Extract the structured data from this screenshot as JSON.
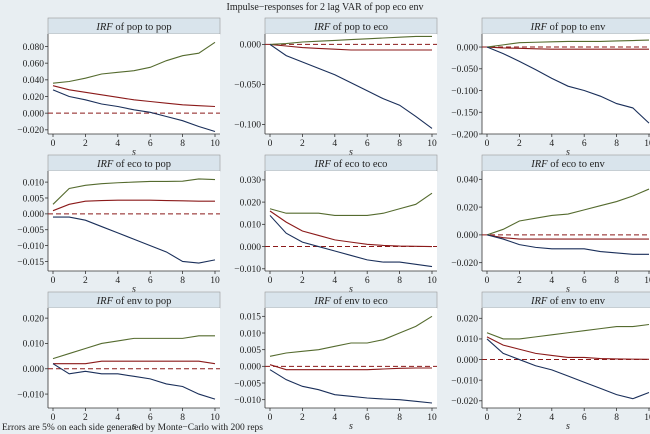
{
  "figure_title": "Impulse−responses for 2 lag VAR of pop eco env",
  "footnote": "Errors are 5% on each side generated by Monte−Carlo with 200 reps",
  "colors": {
    "background": "#e8eef2",
    "plot_background": "#ffffff",
    "header_background": "#d9e4ec",
    "irf": "#8b1a1a",
    "lower_band": "#1a2f5a",
    "upper_band": "#556b2f",
    "zero_line": "#8b1a1a"
  },
  "chart_data": [
    {
      "type": "line",
      "title_prefix": "IRF",
      "title_rest": " of pop to pop",
      "xlabel": "s",
      "x": [
        0,
        1,
        2,
        3,
        4,
        5,
        6,
        7,
        8,
        9,
        10
      ],
      "xticks": [
        0,
        2,
        4,
        6,
        8,
        10
      ],
      "xlim": [
        0,
        10
      ],
      "ylim": [
        -0.025,
        0.095
      ],
      "yticks": [
        -0.02,
        0,
        0.02,
        0.04,
        0.06,
        0.08
      ],
      "ytick_labels": [
        "−0.020",
        "0.000",
        "0.020",
        "0.040",
        "0.060",
        "0.080"
      ],
      "series": [
        {
          "role": "irf",
          "values": [
            0.033,
            0.028,
            0.025,
            0.022,
            0.019,
            0.016,
            0.014,
            0.012,
            0.01,
            0.009,
            0.008
          ]
        },
        {
          "role": "upper",
          "values": [
            0.036,
            0.038,
            0.042,
            0.047,
            0.049,
            0.051,
            0.055,
            0.063,
            0.069,
            0.072,
            0.085
          ]
        },
        {
          "role": "lower",
          "values": [
            0.028,
            0.02,
            0.016,
            0.011,
            0.008,
            0.004,
            0.001,
            -0.004,
            -0.009,
            -0.016,
            -0.022
          ]
        }
      ]
    },
    {
      "type": "line",
      "title_prefix": "IRF",
      "title_rest": " of pop to eco",
      "xlabel": "s",
      "x": [
        0,
        1,
        2,
        3,
        4,
        5,
        6,
        7,
        8,
        9,
        10
      ],
      "xticks": [
        0,
        2,
        4,
        6,
        8,
        10
      ],
      "xlim": [
        0,
        10
      ],
      "ylim": [
        -0.112,
        0.013
      ],
      "yticks": [
        -0.1,
        -0.05,
        0
      ],
      "ytick_labels": [
        "−0.100",
        "−0.050",
        "0.000"
      ],
      "series": [
        {
          "role": "irf",
          "values": [
            0,
            -0.002,
            -0.004,
            -0.005,
            -0.006,
            -0.007,
            -0.007,
            -0.007,
            -0.007,
            -0.007,
            -0.007
          ]
        },
        {
          "role": "upper",
          "values": [
            0,
            0.001,
            0.003,
            0.004,
            0.005,
            0.006,
            0.007,
            0.008,
            0.009,
            0.01,
            0.01
          ]
        },
        {
          "role": "lower",
          "values": [
            0,
            -0.014,
            -0.022,
            -0.03,
            -0.038,
            -0.048,
            -0.058,
            -0.068,
            -0.076,
            -0.09,
            -0.105
          ]
        }
      ]
    },
    {
      "type": "line",
      "title_prefix": "IRF",
      "title_rest": " of pop to env",
      "xlabel": "s",
      "x": [
        0,
        1,
        2,
        3,
        4,
        5,
        6,
        7,
        8,
        9,
        10
      ],
      "xticks": [
        0,
        2,
        4,
        6,
        8,
        10
      ],
      "xlim": [
        0,
        10
      ],
      "ylim": [
        -0.2,
        0.03
      ],
      "yticks": [
        -0.2,
        -0.15,
        -0.1,
        -0.05,
        0
      ],
      "ytick_labels": [
        "−0.200",
        "−0.150",
        "−0.100",
        "−0.050",
        "0.000"
      ],
      "series": [
        {
          "role": "irf",
          "values": [
            0,
            -0.002,
            -0.003,
            -0.004,
            -0.005,
            -0.005,
            -0.005,
            -0.005,
            -0.005,
            -0.005,
            -0.005
          ]
        },
        {
          "role": "upper",
          "values": [
            0,
            0.005,
            0.01,
            0.011,
            0.012,
            0.013,
            0.013,
            0.013,
            0.014,
            0.015,
            0.016
          ]
        },
        {
          "role": "lower",
          "values": [
            0,
            -0.015,
            -0.033,
            -0.052,
            -0.072,
            -0.09,
            -0.1,
            -0.113,
            -0.13,
            -0.14,
            -0.175
          ]
        }
      ]
    },
    {
      "type": "line",
      "title_prefix": "IRF",
      "title_rest": " of eco to pop",
      "xlabel": "s",
      "x": [
        0,
        1,
        2,
        3,
        4,
        5,
        6,
        7,
        8,
        9,
        10
      ],
      "xticks": [
        0,
        2,
        4,
        6,
        8,
        10
      ],
      "xlim": [
        0,
        10
      ],
      "ylim": [
        -0.018,
        0.0135
      ],
      "yticks": [
        -0.015,
        -0.01,
        -0.005,
        0,
        0.005,
        0.01
      ],
      "ytick_labels": [
        "−0.015",
        "−0.010",
        "−0.005",
        "0.000",
        "0.005",
        "0.010"
      ],
      "series": [
        {
          "role": "irf",
          "values": [
            0.001,
            0.003,
            0.004,
            0.0042,
            0.0043,
            0.0043,
            0.0043,
            0.0042,
            0.0041,
            0.004,
            0.004
          ]
        },
        {
          "role": "upper",
          "values": [
            0.003,
            0.008,
            0.009,
            0.0095,
            0.0098,
            0.01,
            0.0102,
            0.0102,
            0.0103,
            0.011,
            0.0108
          ]
        },
        {
          "role": "lower",
          "values": [
            -0.001,
            -0.001,
            -0.002,
            -0.004,
            -0.006,
            -0.008,
            -0.01,
            -0.012,
            -0.015,
            -0.0155,
            -0.0145
          ]
        }
      ]
    },
    {
      "type": "line",
      "title_prefix": "IRF",
      "title_rest": " of eco to eco",
      "xlabel": "s",
      "x": [
        0,
        1,
        2,
        3,
        4,
        5,
        6,
        7,
        8,
        9,
        10
      ],
      "xticks": [
        0,
        2,
        4,
        6,
        8,
        10
      ],
      "xlim": [
        0,
        10
      ],
      "ylim": [
        -0.011,
        0.034
      ],
      "yticks": [
        -0.01,
        0,
        0.01,
        0.02,
        0.03
      ],
      "ytick_labels": [
        "−0.010",
        "0.000",
        "0.010",
        "0.020",
        "0.030"
      ],
      "series": [
        {
          "role": "irf",
          "values": [
            0.016,
            0.011,
            0.007,
            0.005,
            0.003,
            0.002,
            0.001,
            0.0005,
            0.0002,
            0.0001,
            0.0
          ]
        },
        {
          "role": "upper",
          "values": [
            0.017,
            0.015,
            0.015,
            0.015,
            0.014,
            0.014,
            0.014,
            0.015,
            0.017,
            0.019,
            0.024
          ]
        },
        {
          "role": "lower",
          "values": [
            0.014,
            0.006,
            0.002,
            0.0,
            -0.002,
            -0.004,
            -0.006,
            -0.007,
            -0.007,
            -0.008,
            -0.009
          ]
        }
      ]
    },
    {
      "type": "line",
      "title_prefix": "IRF",
      "title_rest": " of eco to env",
      "xlabel": "s",
      "x": [
        0,
        1,
        2,
        3,
        4,
        5,
        6,
        7,
        8,
        9,
        10
      ],
      "xticks": [
        0,
        2,
        4,
        6,
        8,
        10
      ],
      "xlim": [
        0,
        10
      ],
      "ylim": [
        -0.026,
        0.046
      ],
      "yticks": [
        -0.02,
        0,
        0.02,
        0.04
      ],
      "ytick_labels": [
        "−0.020",
        "0.000",
        "0.020",
        "0.040"
      ],
      "series": [
        {
          "role": "irf",
          "values": [
            0,
            -0.002,
            -0.003,
            -0.003,
            -0.003,
            -0.003,
            -0.003,
            -0.003,
            -0.003,
            -0.003,
            -0.003
          ]
        },
        {
          "role": "upper",
          "values": [
            0,
            0.004,
            0.01,
            0.012,
            0.014,
            0.015,
            0.018,
            0.021,
            0.024,
            0.028,
            0.033
          ]
        },
        {
          "role": "lower",
          "values": [
            0,
            -0.003,
            -0.007,
            -0.009,
            -0.01,
            -0.01,
            -0.01,
            -0.012,
            -0.013,
            -0.014,
            -0.014
          ]
        }
      ]
    },
    {
      "type": "line",
      "title_prefix": "IRF",
      "title_rest": " of env to pop",
      "xlabel": "s",
      "x": [
        0,
        1,
        2,
        3,
        4,
        5,
        6,
        7,
        8,
        9,
        10
      ],
      "xticks": [
        0,
        2,
        4,
        6,
        8,
        10
      ],
      "xlim": [
        0,
        10
      ],
      "ylim": [
        -0.0155,
        0.024
      ],
      "yticks": [
        -0.01,
        0,
        0.01,
        0.02
      ],
      "ytick_labels": [
        "−0.010",
        "0.000",
        "0.010",
        "0.020"
      ],
      "series": [
        {
          "role": "irf",
          "values": [
            0.002,
            0.002,
            0.002,
            0.003,
            0.003,
            0.003,
            0.003,
            0.003,
            0.003,
            0.003,
            0.002
          ]
        },
        {
          "role": "upper",
          "values": [
            0.004,
            0.006,
            0.008,
            0.01,
            0.011,
            0.012,
            0.012,
            0.012,
            0.012,
            0.013,
            0.013
          ]
        },
        {
          "role": "lower",
          "values": [
            0.002,
            -0.002,
            -0.001,
            -0.002,
            -0.002,
            -0.003,
            -0.004,
            -0.006,
            -0.007,
            -0.01,
            -0.012
          ]
        }
      ]
    },
    {
      "type": "line",
      "title_prefix": "IRF",
      "title_rest": " of env to eco",
      "xlabel": "s",
      "x": [
        0,
        1,
        2,
        3,
        4,
        5,
        6,
        7,
        8,
        9,
        10
      ],
      "xticks": [
        0,
        2,
        4,
        6,
        8,
        10
      ],
      "xlim": [
        0,
        10
      ],
      "ylim": [
        -0.0125,
        0.0175
      ],
      "yticks": [
        -0.01,
        -0.005,
        0,
        0.005,
        0.01,
        0.015
      ],
      "ytick_labels": [
        "−0.010",
        "−0.005",
        "0.000",
        "0.005",
        "0.010",
        "0.015"
      ],
      "series": [
        {
          "role": "irf",
          "values": [
            0.0005,
            -0.001,
            -0.001,
            -0.001,
            -0.001,
            -0.001,
            -0.001,
            -0.0008,
            -0.0006,
            -0.0005,
            -0.0005
          ]
        },
        {
          "role": "upper",
          "values": [
            0.003,
            0.004,
            0.0045,
            0.005,
            0.006,
            0.007,
            0.007,
            0.008,
            0.01,
            0.012,
            0.015
          ]
        },
        {
          "role": "lower",
          "values": [
            -0.001,
            -0.004,
            -0.006,
            -0.007,
            -0.0085,
            -0.009,
            -0.0095,
            -0.0098,
            -0.01,
            -0.0105,
            -0.011
          ]
        }
      ]
    },
    {
      "type": "line",
      "title_prefix": "IRF",
      "title_rest": " of env to env",
      "xlabel": "s",
      "x": [
        0,
        1,
        2,
        3,
        4,
        5,
        6,
        7,
        8,
        9,
        10
      ],
      "xticks": [
        0,
        2,
        4,
        6,
        8,
        10
      ],
      "xlim": [
        0,
        10
      ],
      "ylim": [
        -0.0235,
        0.025
      ],
      "yticks": [
        -0.02,
        -0.01,
        0,
        0.01,
        0.02
      ],
      "ytick_labels": [
        "−0.020",
        "−0.010",
        "0.000",
        "0.010",
        "0.020"
      ],
      "series": [
        {
          "role": "irf",
          "values": [
            0.011,
            0.007,
            0.005,
            0.003,
            0.002,
            0.001,
            0.001,
            0.0005,
            0.0003,
            0.0002,
            0.0001
          ]
        },
        {
          "role": "upper",
          "values": [
            0.013,
            0.01,
            0.01,
            0.011,
            0.012,
            0.013,
            0.014,
            0.015,
            0.016,
            0.016,
            0.017
          ]
        },
        {
          "role": "lower",
          "values": [
            0.01,
            0.003,
            0.0,
            -0.003,
            -0.005,
            -0.008,
            -0.011,
            -0.014,
            -0.017,
            -0.019,
            -0.016
          ]
        }
      ]
    }
  ]
}
